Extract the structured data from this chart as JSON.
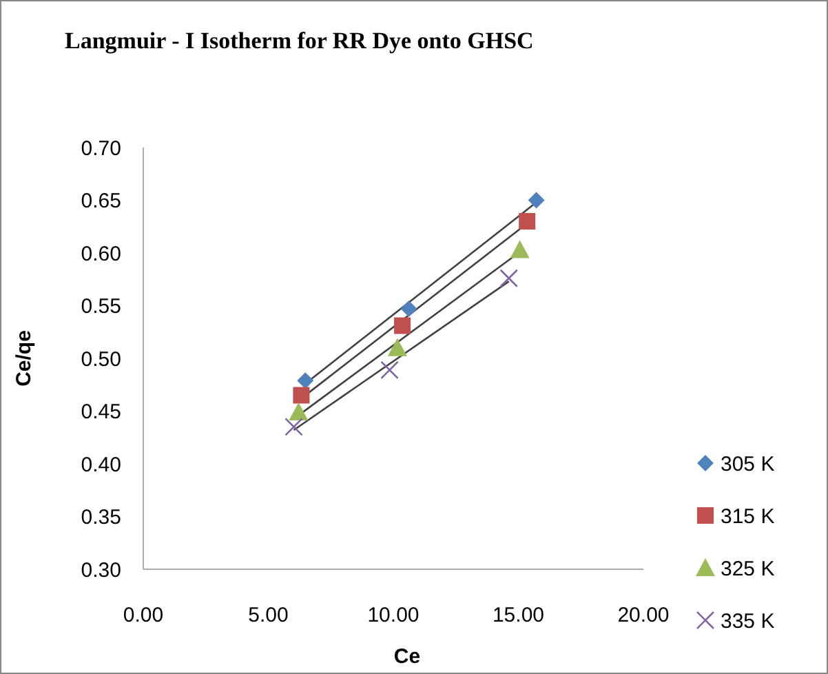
{
  "chart_data": {
    "type": "scatter",
    "title": "Langmuir - I Isotherm for  RR Dye onto GHSC",
    "xlabel": "Ce",
    "ylabel": "Ce/qe",
    "xlim": [
      0,
      20
    ],
    "xticks": [
      {
        "value": 0,
        "label": "0.00"
      },
      {
        "value": 5,
        "label": "5.00"
      },
      {
        "value": 10,
        "label": "10.00"
      },
      {
        "value": 15,
        "label": "15.00"
      },
      {
        "value": 20,
        "label": "20.00"
      }
    ],
    "ylim": [
      0.3,
      0.7
    ],
    "yticks": [
      {
        "value": 0.3,
        "label": "0.30"
      },
      {
        "value": 0.35,
        "label": "0.35"
      },
      {
        "value": 0.4,
        "label": "0.40"
      },
      {
        "value": 0.45,
        "label": "0.45"
      },
      {
        "value": 0.5,
        "label": "0.50"
      },
      {
        "value": 0.55,
        "label": "0.55"
      },
      {
        "value": 0.6,
        "label": "0.60"
      },
      {
        "value": 0.65,
        "label": "0.65"
      },
      {
        "value": 0.7,
        "label": "0.70"
      }
    ],
    "grid": false,
    "legend": "right",
    "series": [
      {
        "name": "305 K",
        "color": "#4f81bd",
        "marker": "diamond",
        "x": [
          6.48,
          10.62,
          15.72
        ],
        "values": [
          0.479,
          0.547,
          0.65
        ]
      },
      {
        "name": "315 K",
        "color": "#c0504d",
        "marker": "square",
        "x": [
          6.32,
          10.36,
          15.35
        ],
        "values": [
          0.465,
          0.531,
          0.63
        ]
      },
      {
        "name": "325 K",
        "color": "#9bbb59",
        "marker": "triangle",
        "x": [
          6.21,
          10.16,
          15.06
        ],
        "values": [
          0.449,
          0.51,
          0.603
        ]
      },
      {
        "name": "335 K",
        "color": "#8064a2",
        "marker": "cross",
        "x": [
          6.02,
          9.85,
          14.62
        ],
        "values": [
          0.435,
          0.489,
          0.576
        ]
      },
      {
        "type": "line",
        "color": "#404040",
        "marker": "none",
        "x": [
          6.48,
          15.72
        ],
        "values": [
          0.476,
          0.648
        ]
      },
      {
        "type": "line",
        "color": "#404040",
        "marker": "none",
        "x": [
          6.32,
          15.35
        ],
        "values": [
          0.462,
          0.628
        ]
      },
      {
        "type": "line",
        "color": "#404040",
        "marker": "none",
        "x": [
          6.21,
          15.06
        ],
        "values": [
          0.446,
          0.601
        ]
      },
      {
        "type": "line",
        "color": "#404040",
        "marker": "none",
        "x": [
          6.02,
          14.62
        ],
        "values": [
          0.432,
          0.573
        ]
      }
    ]
  }
}
